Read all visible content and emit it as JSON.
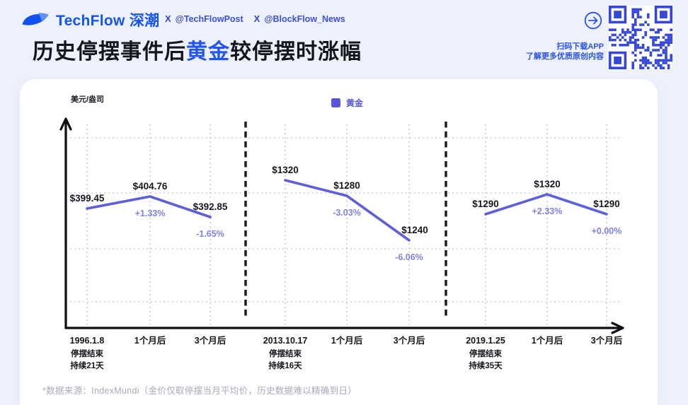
{
  "header": {
    "brand": "TechFlow 深潮",
    "handles": [
      {
        "name": "@TechFlowPost"
      },
      {
        "name": "@BlockFlow_News"
      }
    ],
    "qr_caption_line1": "扫码下载APP",
    "qr_caption_line2": "了解更多优质原创内容",
    "title_prefix": "历史停摆事件后",
    "title_highlight": "黄金",
    "title_suffix": "较停摆时涨幅"
  },
  "chart_data": {
    "type": "line",
    "title": "历史停摆事件后黄金较停摆时涨幅",
    "ylabel": "美元/盎司",
    "legend_label": "黄金",
    "grid": "dotted",
    "legend_position": "top-center",
    "sections": [
      {
        "categories": [
          "1996.1.8",
          "1个月后",
          "3个月后"
        ],
        "values": [
          399.45,
          404.76,
          392.85
        ],
        "value_labels": [
          "$399.45",
          "$404.76",
          "$392.85"
        ],
        "pct_labels": [
          null,
          "+1.33%",
          "-1.65%"
        ],
        "note_line1": "停摆结束",
        "note_line2": "持续21天"
      },
      {
        "categories": [
          "2013.10.17",
          "1个月后",
          "3个月后"
        ],
        "values": [
          1320,
          1280,
          1240
        ],
        "value_labels": [
          "$1320",
          "$1280",
          "$1240"
        ],
        "pct_labels": [
          null,
          "-3.03%",
          "-6.06%"
        ],
        "note_line1": "停摆结束",
        "note_line2": "持续16天"
      },
      {
        "categories": [
          "2019.1.25",
          "1个月后",
          "3个月后"
        ],
        "values": [
          1290,
          1320,
          1290
        ],
        "value_labels": [
          "$1290",
          "$1320",
          "$1290"
        ],
        "pct_labels": [
          null,
          "+2.33%",
          "+0.00%"
        ],
        "note_line1": "停摆结束",
        "note_line2": "持续35天"
      }
    ]
  },
  "footer": {
    "source_note": "*数据来源：IndexMundi（金价仅取停摆当月平均价，历史数据难以精确到日）"
  },
  "colors": {
    "background": "#EDF1FB",
    "card": "#FFFFFF",
    "brand_blue": "#1454F1",
    "handle_blue": "#3D50DC",
    "title_dark": "#14151D",
    "title_highlight": "#2253F3",
    "line_purple": "#5E60D9",
    "pct_purple": "#7F80E8",
    "legend_square": "#5857D6",
    "value_label_dark": "#17181F",
    "axis_black": "#0E0E13",
    "grid_gray": "#C3C3C9",
    "divider_dark": "#1C1C22",
    "footer_gray": "#A6ABB8",
    "qr_blue": "#3447D9",
    "caption_blue": "#2C52EA"
  }
}
